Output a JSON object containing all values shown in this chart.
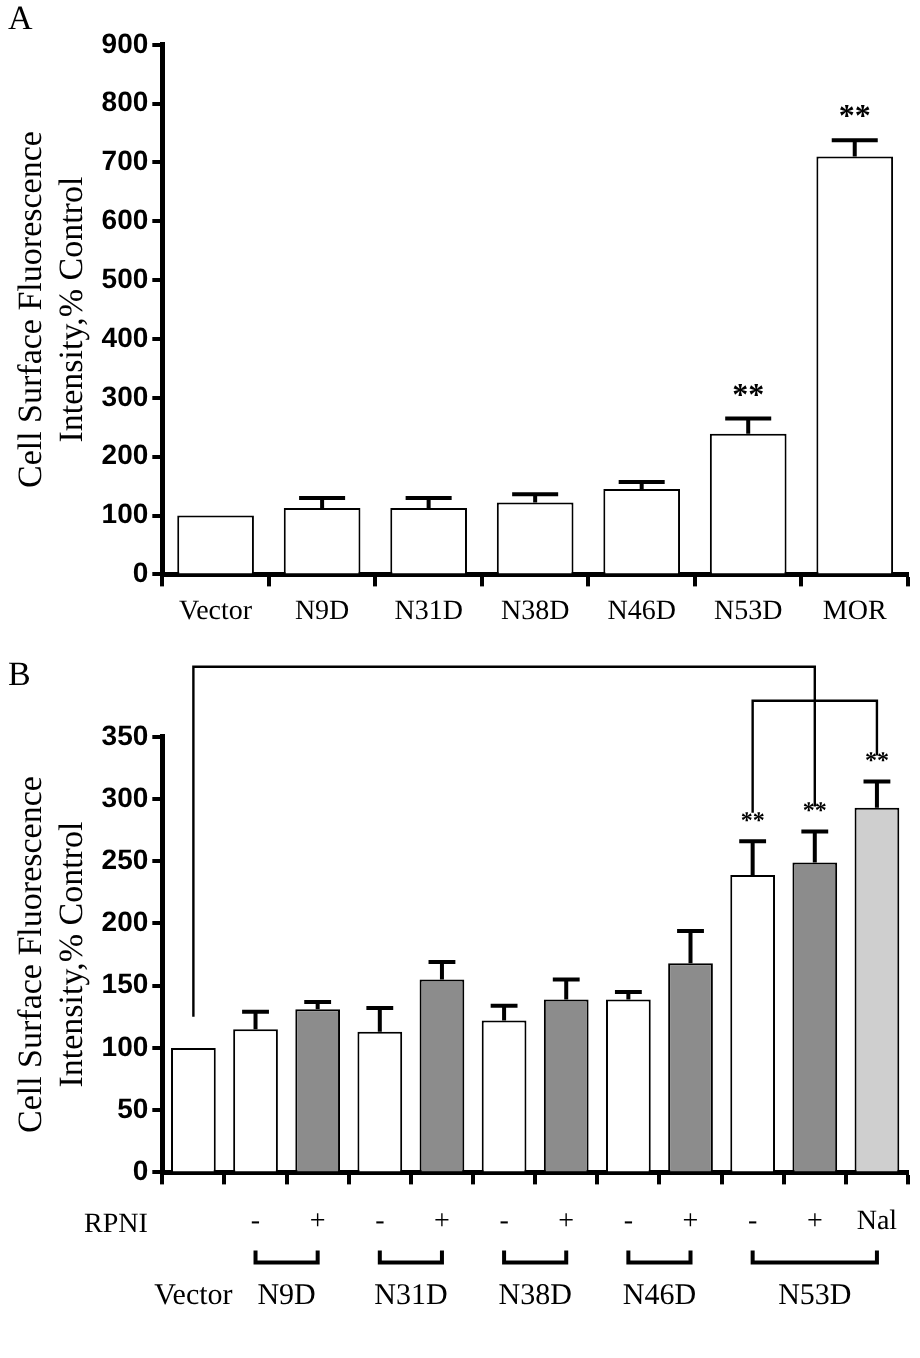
{
  "chart_data": [
    {
      "type": "bar",
      "title": "A",
      "ylabel": "Cell Surface Fluorescence Intensity,% Control",
      "categories": [
        "Vector",
        "N9D",
        "N31D",
        "N38D",
        "N46D",
        "N53D",
        "MOR"
      ],
      "values": [
        100,
        113,
        113,
        122,
        145,
        239,
        710
      ],
      "errors": [
        null,
        17,
        17,
        14,
        12,
        26,
        28
      ],
      "colors": [
        "#ffffff",
        "#ffffff",
        "#ffffff",
        "#ffffff",
        "#ffffff",
        "#ffffff",
        "#ffffff"
      ],
      "ylim": [
        0,
        900
      ],
      "yticks": [
        0,
        100,
        200,
        300,
        400,
        500,
        600,
        700,
        800,
        900
      ],
      "grid": false,
      "annotations": [
        {
          "text": "**",
          "x": "N53D",
          "y": 265
        },
        {
          "text": "**",
          "x": "MOR",
          "y": 738
        }
      ]
    },
    {
      "type": "bar",
      "title": "B",
      "ylabel": "Cell Surface Fluorescence Intensity,% Control",
      "categories": [
        null,
        "-",
        "+",
        "-",
        "+",
        "-",
        "+",
        "-",
        "+",
        "-",
        "+",
        "Nal"
      ],
      "values": [
        100,
        115,
        131,
        113,
        155,
        122,
        139,
        139,
        168,
        239,
        249,
        293
      ],
      "errors": [
        null,
        14,
        6,
        19,
        14,
        12,
        16,
        6,
        26,
        27,
        25,
        21
      ],
      "colors": [
        "#ffffff",
        "#ffffff",
        "#8c8c8c",
        "#ffffff",
        "#8c8c8c",
        "#ffffff",
        "#8c8c8c",
        "#ffffff",
        "#8c8c8c",
        "#ffffff",
        "#8c8c8c",
        "#cfcfcf"
      ],
      "ylim": [
        0,
        350
      ],
      "yticks": [
        0,
        50,
        100,
        150,
        200,
        250,
        300,
        350
      ],
      "grid": false,
      "annotations": [
        "**",
        "**",
        "**",
        "RPNI",
        "Vector",
        "N9D",
        "N31D",
        "N38D",
        "N46D",
        "N53D"
      ]
    }
  ]
}
